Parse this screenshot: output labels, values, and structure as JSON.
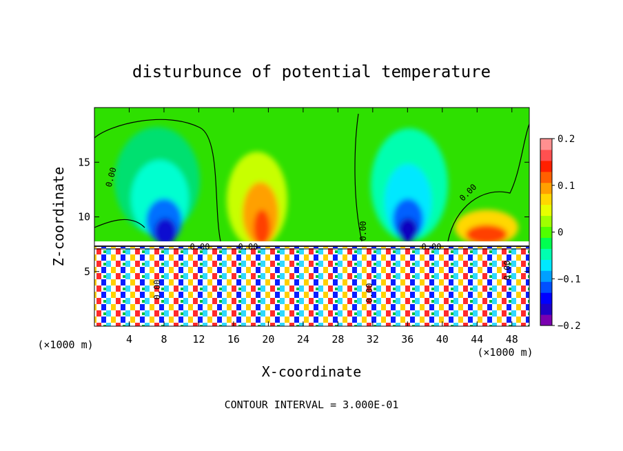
{
  "chart_data": {
    "type": "heatmap",
    "title": "disturbunce of potential temperature",
    "xlabel": "X-coordinate",
    "ylabel": "Z-coordinate",
    "x_unit_left": "(×1000 m)",
    "x_unit_right": "(×1000 m)",
    "xlim": [
      0,
      50
    ],
    "ylim": [
      0,
      20
    ],
    "x_ticks": [
      4,
      8,
      12,
      16,
      20,
      24,
      28,
      32,
      36,
      40,
      44,
      48
    ],
    "x_tick_labels": [
      "4",
      "8",
      "12",
      "16",
      "20",
      "24",
      "28",
      "32",
      "36",
      "40",
      "44",
      "48"
    ],
    "y_ticks": [
      5,
      10,
      15
    ],
    "y_tick_labels": [
      "5",
      "10",
      "15"
    ],
    "colorbar": {
      "min": -0.2,
      "max": 0.2,
      "ticks": [
        0.2,
        0.1,
        0,
        -0.1,
        -0.2
      ],
      "tick_labels": [
        "0.2",
        "0.1",
        "0",
        "−0.1",
        "−0.2"
      ],
      "colors": [
        "#7a00b0",
        "#1e00c8",
        "#0000ff",
        "#0050ff",
        "#00a0ff",
        "#00e8ff",
        "#00ffb0",
        "#00ff50",
        "#50ff00",
        "#a0ff00",
        "#e8ff00",
        "#ffd800",
        "#ffa000",
        "#ff6000",
        "#ff2000",
        "#ff5050",
        "#ff9090"
      ]
    },
    "contour_labels": [
      "0.00",
      "0.00",
      "0.00",
      "0.00",
      "0.00",
      "0.00",
      "0.00",
      "0.00",
      "0.00"
    ],
    "contour_interval_text": "CONTOUR INTERVAL = 3.000E-01",
    "features": [
      {
        "x": 9,
        "z": 9,
        "value": -0.2
      },
      {
        "x": 6,
        "z": 15,
        "value": -0.08
      },
      {
        "x": 19,
        "z": 11,
        "value": 0.12
      },
      {
        "x": 20,
        "z": 15,
        "value": 0.06
      },
      {
        "x": 36,
        "z": 9,
        "value": -0.2
      },
      {
        "x": 35,
        "z": 15,
        "value": -0.09
      },
      {
        "x": 45,
        "z": 9,
        "value": 0.1
      }
    ]
  }
}
